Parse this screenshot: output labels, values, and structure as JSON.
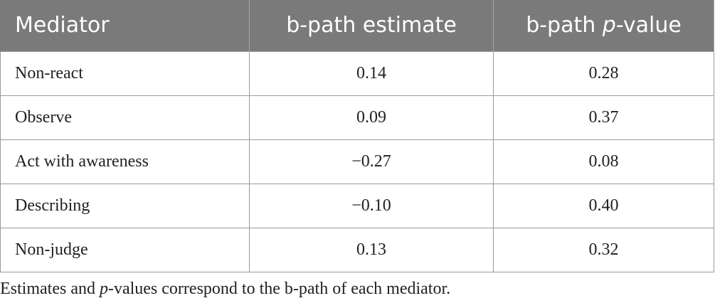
{
  "table": {
    "headers": {
      "mediator": "Mediator",
      "estimate": "b-path estimate",
      "pvalue_prefix": "b-path ",
      "pvalue_italic": "p",
      "pvalue_suffix": "-value"
    },
    "rows": [
      {
        "mediator": "Non-react",
        "estimate": "0.14",
        "pvalue": "0.28"
      },
      {
        "mediator": "Observe",
        "estimate": "0.09",
        "pvalue": "0.37"
      },
      {
        "mediator": "Act with awareness",
        "estimate": "−0.27",
        "pvalue": "0.08"
      },
      {
        "mediator": "Describing",
        "estimate": "−0.10",
        "pvalue": "0.40"
      },
      {
        "mediator": "Non-judge",
        "estimate": "0.13",
        "pvalue": "0.32"
      }
    ]
  },
  "footnote": {
    "before": "Estimates and ",
    "italic": "p",
    "after": "-values correspond to the b-path of each mediator."
  }
}
